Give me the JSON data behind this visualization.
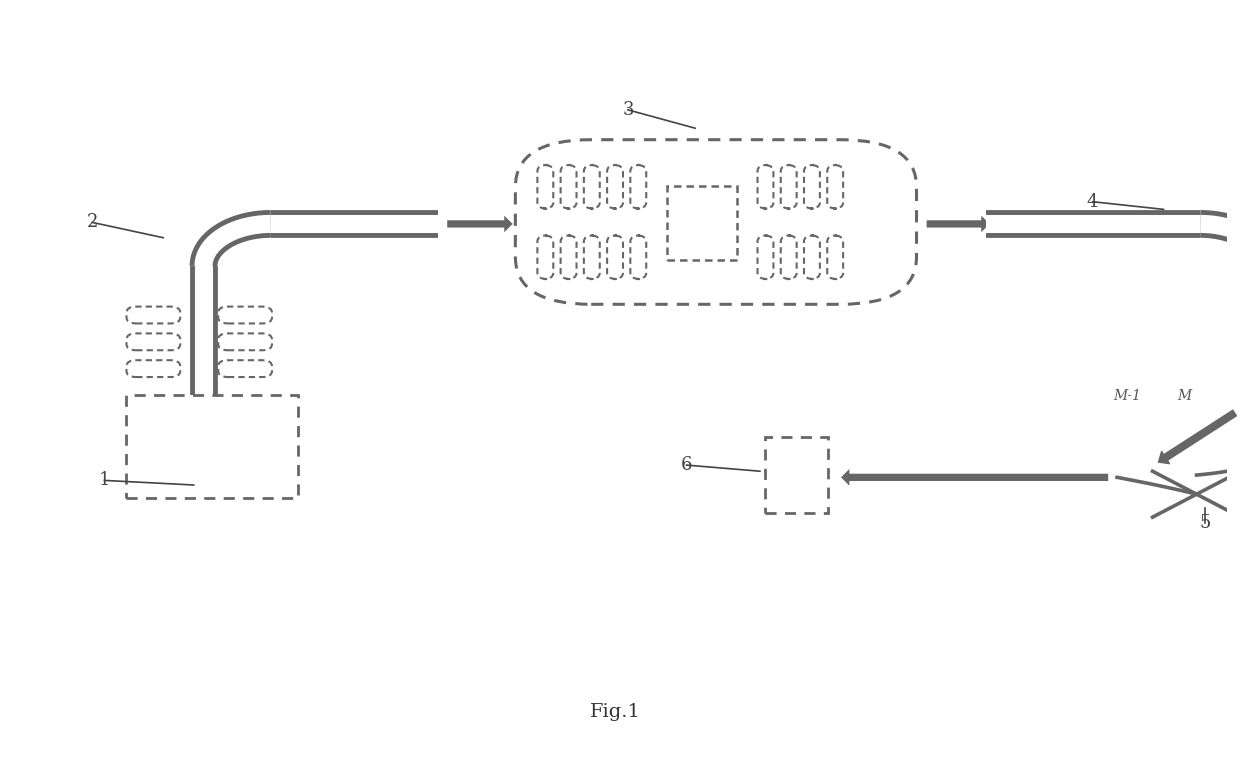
{
  "bg_color": "#ffffff",
  "lc": "#666666",
  "lw": 2.0,
  "fig_width": 12.39,
  "fig_height": 7.74,
  "title": "Fig.1"
}
